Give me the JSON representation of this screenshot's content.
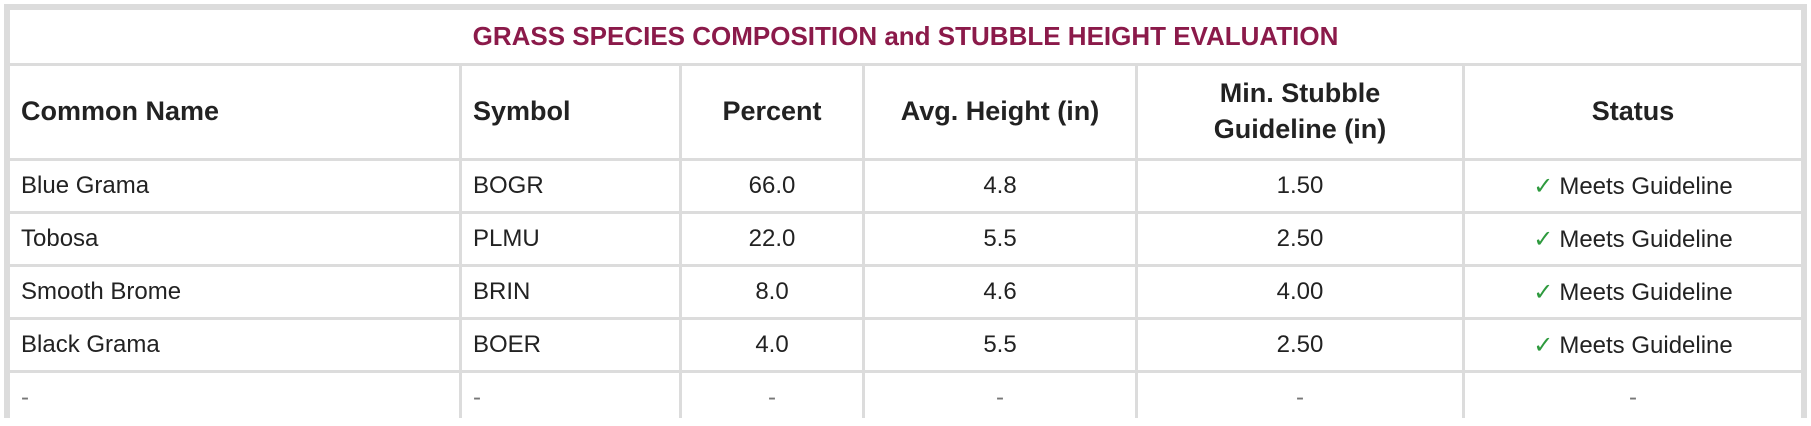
{
  "title": "GRASS SPECIES COMPOSITION and STUBBLE HEIGHT EVALUATION",
  "columns": [
    "Common Name",
    "Symbol",
    "Percent",
    "Avg. Height (in)",
    "Min. Stubble Guideline (in)",
    "Status"
  ],
  "column_header_lines": {
    "min_stubble_line1": "Min. Stubble",
    "min_stubble_line2": "Guideline (in)"
  },
  "rows": [
    {
      "common_name": "Blue Grama",
      "symbol": "BOGR",
      "percent": "66.0",
      "avg_height": "4.8",
      "min_stubble": "1.50",
      "status": "Meets Guideline",
      "status_icon": "check-icon"
    },
    {
      "common_name": "Tobosa",
      "symbol": "PLMU",
      "percent": "22.0",
      "avg_height": "5.5",
      "min_stubble": "2.50",
      "status": "Meets Guideline",
      "status_icon": "check-icon"
    },
    {
      "common_name": "Smooth Brome",
      "symbol": "BRIN",
      "percent": "8.0",
      "avg_height": "4.6",
      "min_stubble": "4.00",
      "status": "Meets Guideline",
      "status_icon": "check-icon"
    },
    {
      "common_name": "Black Grama",
      "symbol": "BOER",
      "percent": "4.0",
      "avg_height": "5.5",
      "min_stubble": "2.50",
      "status": "Meets Guideline",
      "status_icon": "check-icon"
    },
    {
      "common_name": "-",
      "symbol": "-",
      "percent": "-",
      "avg_height": "-",
      "min_stubble": "-",
      "status": "-"
    }
  ],
  "colors": {
    "title": "#8b1a4a",
    "check": "#2e9a3e",
    "grid": "#dcdcdc",
    "text": "#222222"
  }
}
